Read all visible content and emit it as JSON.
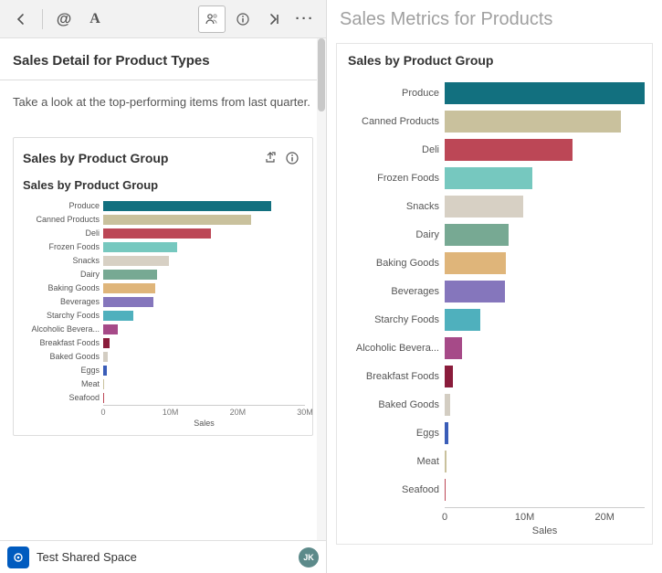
{
  "toolbar": {
    "icons": [
      "back",
      "at",
      "text-style",
      "people",
      "info",
      "collapse-right",
      "more"
    ]
  },
  "left": {
    "title": "Sales Detail for Product Types",
    "body": "Take a look at the top-performing items from last quarter."
  },
  "footer": {
    "space_label": "Test Shared Space",
    "avatar_initials": "JK"
  },
  "right": {
    "title": "Sales Metrics for Products"
  },
  "chart": {
    "type": "bar",
    "title": "Sales by Product Group",
    "subtitle": "Sales by Product Group",
    "axis_label": "Sales",
    "categories": [
      "Produce",
      "Canned Products",
      "Deli",
      "Frozen Foods",
      "Snacks",
      "Dairy",
      "Baking Goods",
      "Beverages",
      "Starchy Foods",
      "Alcoholic Bevera...",
      "Breakfast Foods",
      "Baked Goods",
      "Eggs",
      "Meat",
      "Seafood"
    ],
    "values": [
      25,
      22,
      16,
      11,
      9.8,
      8,
      7.7,
      7.5,
      4.5,
      2.2,
      1,
      0.7,
      0.5,
      0.2,
      0.1
    ],
    "colors": [
      "#12707f",
      "#c9c19d",
      "#bc4756",
      "#76c8bf",
      "#d7d0c4",
      "#77a993",
      "#dfb57a",
      "#8576bc",
      "#4fb0bd",
      "#a64a88",
      "#8a1c3b",
      "#d3cdc2",
      "#3a5db8",
      "#c9c19d",
      "#bc4756"
    ],
    "small": {
      "xmax": 30,
      "ticks": [
        0,
        10,
        20,
        30
      ],
      "tick_labels": [
        "0",
        "10M",
        "20M",
        "30M"
      ]
    },
    "big": {
      "xmax": 25,
      "ticks": [
        0,
        10,
        20
      ],
      "tick_labels": [
        "0",
        "10M",
        "20M"
      ]
    },
    "background_color": "#ffffff",
    "label_fontsize_small": 9,
    "label_fontsize_big": 11
  }
}
